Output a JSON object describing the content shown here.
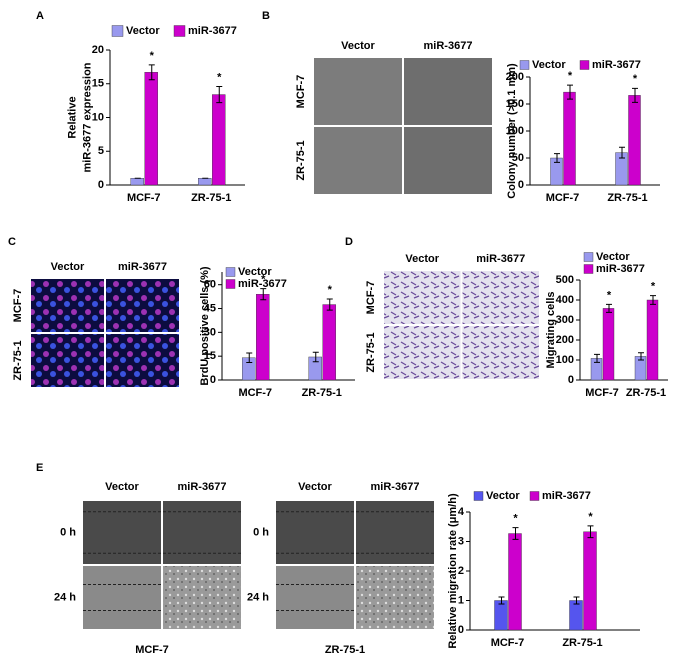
{
  "panel_labels": [
    "A",
    "B",
    "C",
    "D",
    "E"
  ],
  "image_grids": [
    {
      "columns": [
        "Vector",
        "miR-3677"
      ],
      "rows": [
        "MCF-7",
        "ZR-75-1"
      ]
    },
    {
      "columns": [
        "Vector",
        "miR-3677"
      ],
      "rows": [
        "MCF-7",
        "ZR-75-1"
      ]
    },
    {
      "columns": [
        "Vector",
        "miR-3677"
      ],
      "rows": [
        "MCF-7",
        "ZR-75-1"
      ]
    },
    {
      "columns": [
        "Vector",
        "miR-3677"
      ],
      "rows": [
        "0 h",
        "24 h"
      ],
      "caption": "MCF-7"
    },
    {
      "columns": [
        "Vector",
        "miR-3677"
      ],
      "rows": [
        "0 h",
        "24 h"
      ],
      "caption": "ZR-75-1"
    }
  ],
  "chart_data": [
    {
      "type": "bar",
      "y_label": [
        "Relative",
        "miR-3677 expression"
      ],
      "categories": [
        "MCF-7",
        "ZR-75-1"
      ],
      "series": [
        {
          "name": "Vector",
          "color": "#9999ee",
          "values": [
            1,
            1
          ],
          "errors": [
            0,
            0
          ]
        },
        {
          "name": "miR-3677",
          "color": "#cc00cc",
          "values": [
            16.7,
            13.4
          ],
          "errors": [
            1.1,
            1.2
          ]
        }
      ],
      "annotations": [
        "*",
        "*"
      ],
      "ylim": [
        0,
        20
      ],
      "yticks": [
        0,
        5,
        10,
        15,
        20
      ],
      "legend": "top"
    },
    {
      "type": "bar",
      "y_label": "Colony number (>0.1 mm)",
      "categories": [
        "MCF-7",
        "ZR-75-1"
      ],
      "series": [
        {
          "name": "Vector",
          "color": "#9999ee",
          "values": [
            50,
            60
          ],
          "errors": [
            8,
            10
          ]
        },
        {
          "name": "miR-3677",
          "color": "#cc00cc",
          "values": [
            172,
            166
          ],
          "errors": [
            13,
            13
          ]
        }
      ],
      "annotations": [
        "*",
        "*"
      ],
      "ylim": [
        0,
        200
      ],
      "yticks": [
        0,
        50,
        100,
        150,
        200
      ],
      "legend": "top"
    },
    {
      "type": "bar",
      "y_label": "BrdU positive cells (%)",
      "categories": [
        "MCF-7",
        "ZR-75-1"
      ],
      "series": [
        {
          "name": "Vector",
          "color": "#9999ee",
          "values": [
            14,
            14.5
          ],
          "errors": [
            3,
            3
          ]
        },
        {
          "name": "miR-3677",
          "color": "#cc00cc",
          "values": [
            54,
            47.5
          ],
          "errors": [
            3.5,
            3.5
          ]
        }
      ],
      "annotations": [
        "*",
        "*"
      ],
      "ylim": [
        0,
        68
      ],
      "yticks": [
        0,
        15,
        30,
        45,
        60
      ],
      "legend": "top left"
    },
    {
      "type": "bar",
      "y_label": "Migrating cells",
      "categories": [
        "MCF-7",
        "ZR-75-1"
      ],
      "series": [
        {
          "name": "Vector",
          "color": "#9999ee",
          "values": [
            108,
            118
          ],
          "errors": [
            20,
            18
          ]
        },
        {
          "name": "miR-3677",
          "color": "#cc00cc",
          "values": [
            358,
            400
          ],
          "errors": [
            20,
            22
          ]
        }
      ],
      "annotations": [
        "*",
        "*"
      ],
      "ylim": [
        0,
        500
      ],
      "yticks": [
        0,
        100,
        200,
        300,
        400,
        500
      ],
      "legend": "top left"
    },
    {
      "type": "bar",
      "y_label": "Relative migration rate (μm/h)",
      "categories": [
        "MCF-7",
        "ZR-75-1"
      ],
      "series": [
        {
          "name": "Vector",
          "color": "#5555ee",
          "values": [
            1.0,
            1.0
          ],
          "errors": [
            0.12,
            0.12
          ]
        },
        {
          "name": "miR-3677",
          "color": "#cc00cc",
          "values": [
            3.27,
            3.33
          ],
          "errors": [
            0.2,
            0.2
          ]
        }
      ],
      "annotations": [
        "*",
        "*"
      ],
      "ylim": [
        0,
        4
      ],
      "yticks": [
        0,
        1,
        2,
        3,
        4
      ],
      "legend": "top"
    }
  ]
}
